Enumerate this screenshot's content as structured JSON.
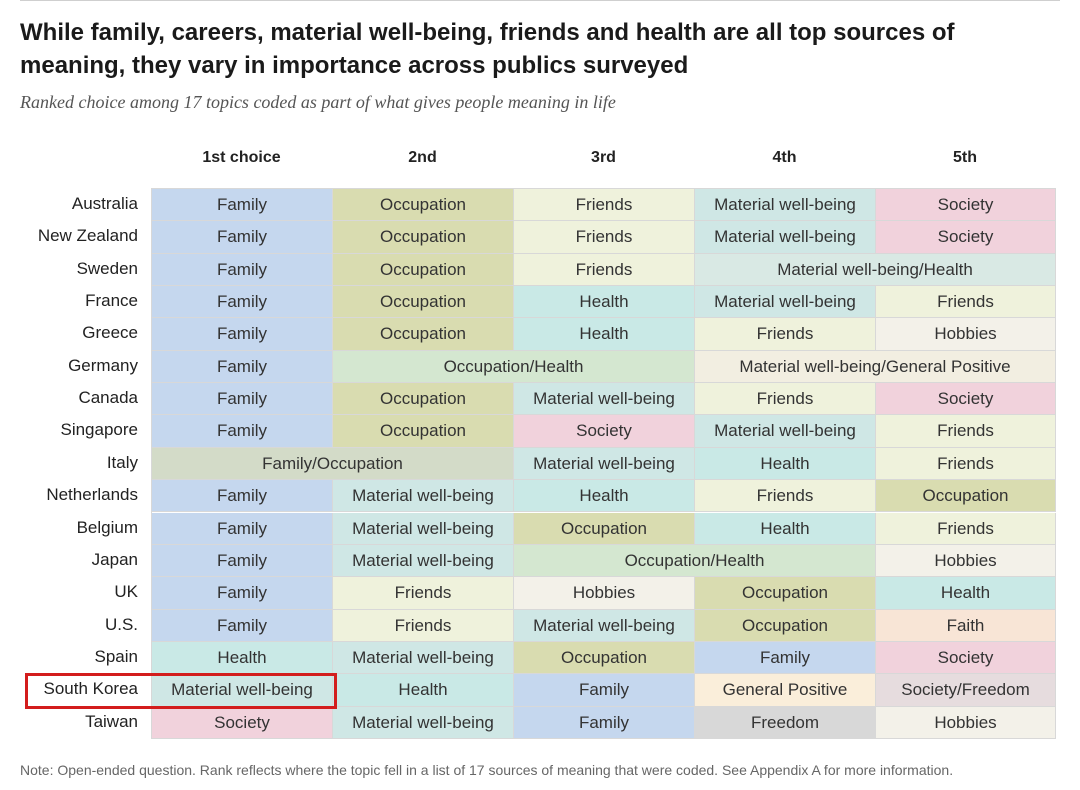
{
  "title": "While family, careers, material well-being, friends and health are all top sources of meaning, they vary in importance across publics surveyed",
  "subtitle": "Ranked choice among 17 topics coded as part of what gives people meaning in life",
  "note": "Note: Open-ended question. Rank reflects where the topic fell in a list of 17 sources of meaning that were coded. See Appendix A for more information.",
  "highlight_row": "South Korea",
  "highlight_color": "#d31d1d",
  "colors": {
    "Family": "#c5d7ee",
    "Occupation": "#d9dcb0",
    "Friends": "#eff2dc",
    "Material well-being": "#cfe7e5",
    "Society": "#f1d2dc",
    "Health": "#c9e9e6",
    "Hobbies": "#f3f1e9",
    "General Positive": "#faeeda",
    "Faith": "#f8e5d6",
    "Freedom": "#d8d8d8",
    "Society/Freedom": "#e6dcde",
    "Material well-being/Health": "#d9e9e4",
    "Occupation/Health": "#d4e7d0",
    "Material well-being/General Positive": "#f2eee1",
    "Family/Occupation": "#d3dbc8"
  },
  "chart_data": {
    "type": "table",
    "columns": [
      "1st choice",
      "2nd",
      "3rd",
      "4th",
      "5th"
    ],
    "rows": [
      {
        "country": "Australia",
        "cells": [
          {
            "label": "Family",
            "span": 1
          },
          {
            "label": "Occupation",
            "span": 1
          },
          {
            "label": "Friends",
            "span": 1
          },
          {
            "label": "Material well-being",
            "span": 1
          },
          {
            "label": "Society",
            "span": 1
          }
        ]
      },
      {
        "country": "New Zealand",
        "cells": [
          {
            "label": "Family",
            "span": 1
          },
          {
            "label": "Occupation",
            "span": 1
          },
          {
            "label": "Friends",
            "span": 1
          },
          {
            "label": "Material well-being",
            "span": 1
          },
          {
            "label": "Society",
            "span": 1
          }
        ]
      },
      {
        "country": "Sweden",
        "cells": [
          {
            "label": "Family",
            "span": 1
          },
          {
            "label": "Occupation",
            "span": 1
          },
          {
            "label": "Friends",
            "span": 1
          },
          {
            "label": "Material well-being/Health",
            "span": 2
          }
        ]
      },
      {
        "country": "France",
        "cells": [
          {
            "label": "Family",
            "span": 1
          },
          {
            "label": "Occupation",
            "span": 1
          },
          {
            "label": "Health",
            "span": 1
          },
          {
            "label": "Material well-being",
            "span": 1
          },
          {
            "label": "Friends",
            "span": 1
          }
        ]
      },
      {
        "country": "Greece",
        "cells": [
          {
            "label": "Family",
            "span": 1
          },
          {
            "label": "Occupation",
            "span": 1
          },
          {
            "label": "Health",
            "span": 1
          },
          {
            "label": "Friends",
            "span": 1
          },
          {
            "label": "Hobbies",
            "span": 1
          }
        ]
      },
      {
        "country": "Germany",
        "cells": [
          {
            "label": "Family",
            "span": 1
          },
          {
            "label": "Occupation/Health",
            "span": 2
          },
          {
            "label": "Material well-being/General Positive",
            "span": 2
          }
        ]
      },
      {
        "country": "Canada",
        "cells": [
          {
            "label": "Family",
            "span": 1
          },
          {
            "label": "Occupation",
            "span": 1
          },
          {
            "label": "Material well-being",
            "span": 1
          },
          {
            "label": "Friends",
            "span": 1
          },
          {
            "label": "Society",
            "span": 1
          }
        ]
      },
      {
        "country": "Singapore",
        "cells": [
          {
            "label": "Family",
            "span": 1
          },
          {
            "label": "Occupation",
            "span": 1
          },
          {
            "label": "Society",
            "span": 1
          },
          {
            "label": "Material well-being",
            "span": 1
          },
          {
            "label": "Friends",
            "span": 1
          }
        ]
      },
      {
        "country": "Italy",
        "cells": [
          {
            "label": "Family/Occupation",
            "span": 2
          },
          {
            "label": "Material well-being",
            "span": 1
          },
          {
            "label": "Health",
            "span": 1
          },
          {
            "label": "Friends",
            "span": 1
          }
        ]
      },
      {
        "country": "Netherlands",
        "cells": [
          {
            "label": "Family",
            "span": 1
          },
          {
            "label": "Material well-being",
            "span": 1
          },
          {
            "label": "Health",
            "span": 1
          },
          {
            "label": "Friends",
            "span": 1
          },
          {
            "label": "Occupation",
            "span": 1
          }
        ]
      },
      {
        "country": "Belgium",
        "cells": [
          {
            "label": "Family",
            "span": 1
          },
          {
            "label": "Material well-being",
            "span": 1
          },
          {
            "label": "Occupation",
            "span": 1
          },
          {
            "label": "Health",
            "span": 1
          },
          {
            "label": "Friends",
            "span": 1
          }
        ]
      },
      {
        "country": "Japan",
        "cells": [
          {
            "label": "Family",
            "span": 1
          },
          {
            "label": "Material well-being",
            "span": 1
          },
          {
            "label": "Occupation/Health",
            "span": 2
          },
          {
            "label": "Hobbies",
            "span": 1
          }
        ]
      },
      {
        "country": "UK",
        "cells": [
          {
            "label": "Family",
            "span": 1
          },
          {
            "label": "Friends",
            "span": 1
          },
          {
            "label": "Hobbies",
            "span": 1
          },
          {
            "label": "Occupation",
            "span": 1
          },
          {
            "label": "Health",
            "span": 1
          }
        ]
      },
      {
        "country": "U.S.",
        "cells": [
          {
            "label": "Family",
            "span": 1
          },
          {
            "label": "Friends",
            "span": 1
          },
          {
            "label": "Material well-being",
            "span": 1
          },
          {
            "label": "Occupation",
            "span": 1
          },
          {
            "label": "Faith",
            "span": 1
          }
        ]
      },
      {
        "country": "Spain",
        "cells": [
          {
            "label": "Health",
            "span": 1
          },
          {
            "label": "Material well-being",
            "span": 1
          },
          {
            "label": "Occupation",
            "span": 1
          },
          {
            "label": "Family",
            "span": 1
          },
          {
            "label": "Society",
            "span": 1
          }
        ]
      },
      {
        "country": "South Korea",
        "cells": [
          {
            "label": "Material well-being",
            "span": 1
          },
          {
            "label": "Health",
            "span": 1
          },
          {
            "label": "Family",
            "span": 1
          },
          {
            "label": "General Positive",
            "span": 1
          },
          {
            "label": "Society/Freedom",
            "span": 1
          }
        ]
      },
      {
        "country": "Taiwan",
        "cells": [
          {
            "label": "Society",
            "span": 1
          },
          {
            "label": "Material well-being",
            "span": 1
          },
          {
            "label": "Family",
            "span": 1
          },
          {
            "label": "Freedom",
            "span": 1
          },
          {
            "label": "Hobbies",
            "span": 1
          }
        ]
      }
    ]
  }
}
